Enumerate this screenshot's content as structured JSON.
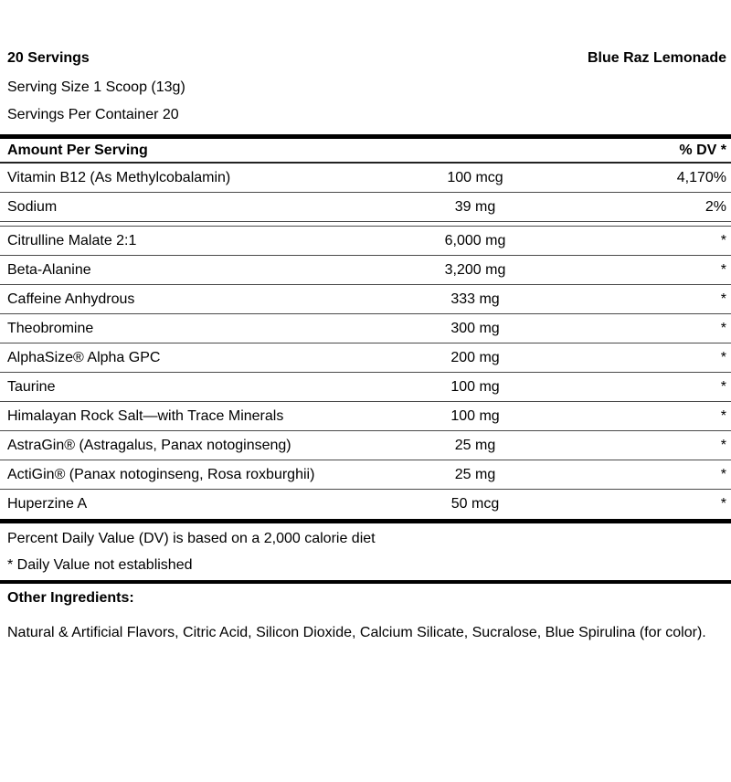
{
  "header": {
    "servings": "20 Servings",
    "flavor": "Blue Raz Lemonade",
    "serving_size": "Serving Size 1 Scoop (13g)",
    "servings_per_container": "Servings Per Container 20"
  },
  "table": {
    "amount_header": "Amount Per Serving",
    "dv_header": "% DV *",
    "rows": [
      {
        "name": "Vitamin B12 (As Methylcobalamin)",
        "amount": "100 mcg",
        "dv": "4,170%"
      },
      {
        "name": "Sodium",
        "amount": "39 mg",
        "dv": "2%"
      },
      {
        "name": "Citrulline Malate 2:1",
        "amount": "6,000 mg",
        "dv": "*"
      },
      {
        "name": "Beta-Alanine",
        "amount": "3,200 mg",
        "dv": "*"
      },
      {
        "name": "Caffeine Anhydrous",
        "amount": "333 mg",
        "dv": "*"
      },
      {
        "name": "Theobromine",
        "amount": "300 mg",
        "dv": "*"
      },
      {
        "name": "AlphaSize® Alpha GPC",
        "amount": "200 mg",
        "dv": "*"
      },
      {
        "name": "Taurine",
        "amount": "100 mg",
        "dv": "*"
      },
      {
        "name": "Himalayan Rock Salt—with Trace Minerals",
        "amount": "100 mg",
        "dv": "*"
      },
      {
        "name": "AstraGin® (Astragalus, Panax notoginseng)",
        "amount": "25 mg",
        "dv": "*"
      },
      {
        "name": "ActiGin® (Panax notoginseng, Rosa roxburghii)",
        "amount": "25 mg",
        "dv": "*"
      },
      {
        "name": "Huperzine A",
        "amount": "50 mcg",
        "dv": "*"
      }
    ]
  },
  "footnotes": {
    "dv_note": "Percent Daily Value (DV) is based on a 2,000 calorie diet",
    "not_established": "* Daily Value not established"
  },
  "other_ingredients": {
    "heading": "Other Ingredients:",
    "text": "Natural & Artificial Flavors, Citric Acid, Silicon Dioxide, Calcium Silicate, Sucralose, Blue Spirulina (for color)."
  },
  "colors": {
    "text": "#000000",
    "background": "#ffffff",
    "thick_bar": "#000000",
    "row_divider": "#4a4a4a",
    "header_divider": "#222222"
  }
}
